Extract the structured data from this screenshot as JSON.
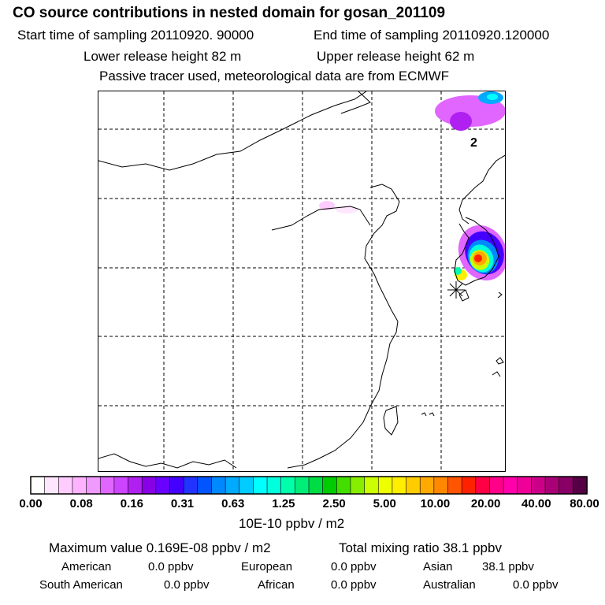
{
  "header": {
    "title": "CO  source contributions in nested domain for gosan_201109",
    "start_time": "Start time of sampling 20110920. 90000",
    "end_time": "End time of sampling 20110920.120000",
    "lower_release": "Lower release height   82 m",
    "upper_release": "Upper release height   62 m",
    "tracer_note": "Passive tracer used, meteorological data are from ECMWF"
  },
  "map": {
    "label_2": "2",
    "receptor_marker": "gosan-receptor"
  },
  "colorbar": {
    "colors": [
      "#ffffff",
      "#ffe6ff",
      "#ffccff",
      "#ffb3ff",
      "#f099ff",
      "#e066ff",
      "#cc44ff",
      "#b020f0",
      "#8a00e6",
      "#6a00ff",
      "#4400ff",
      "#2233ff",
      "#0055ff",
      "#0088ff",
      "#00aaff",
      "#00ccff",
      "#00ffff",
      "#00ffdd",
      "#00ffaa",
      "#00ee77",
      "#00dd44",
      "#00cc00",
      "#44dd00",
      "#88ee00",
      "#ccff00",
      "#eeff00",
      "#ffee00",
      "#ffcc00",
      "#ffaa00",
      "#ff8800",
      "#ff5500",
      "#ff2200",
      "#ff0044",
      "#ff0088",
      "#ff00aa",
      "#ee0099",
      "#cc0088",
      "#aa0077",
      "#880066",
      "#550044"
    ],
    "tick_labels": [
      "0.00",
      "0.08",
      "0.16",
      "0.31",
      "0.63",
      "1.25",
      "2.50",
      "5.00",
      "10.00",
      "20.00",
      "40.00",
      "80.00"
    ],
    "units": "10E-10 ppbv / m2"
  },
  "summary": {
    "max_value": "Maximum value  0.169E-08 ppbv / m2",
    "total_mixing": "Total mixing ratio      38.1 ppbv",
    "american_label": "American",
    "american_value": "0.0 ppbv",
    "european_label": "European",
    "european_value": "0.0 ppbv",
    "asian_label": "Asian",
    "asian_value": "38.1 ppbv",
    "south_american_label": "South American",
    "south_american_value": "0.0 ppbv",
    "african_label": "African",
    "african_value": "0.0 ppbv",
    "australian_label": "Australian",
    "australian_value": "0.0 ppbv"
  }
}
